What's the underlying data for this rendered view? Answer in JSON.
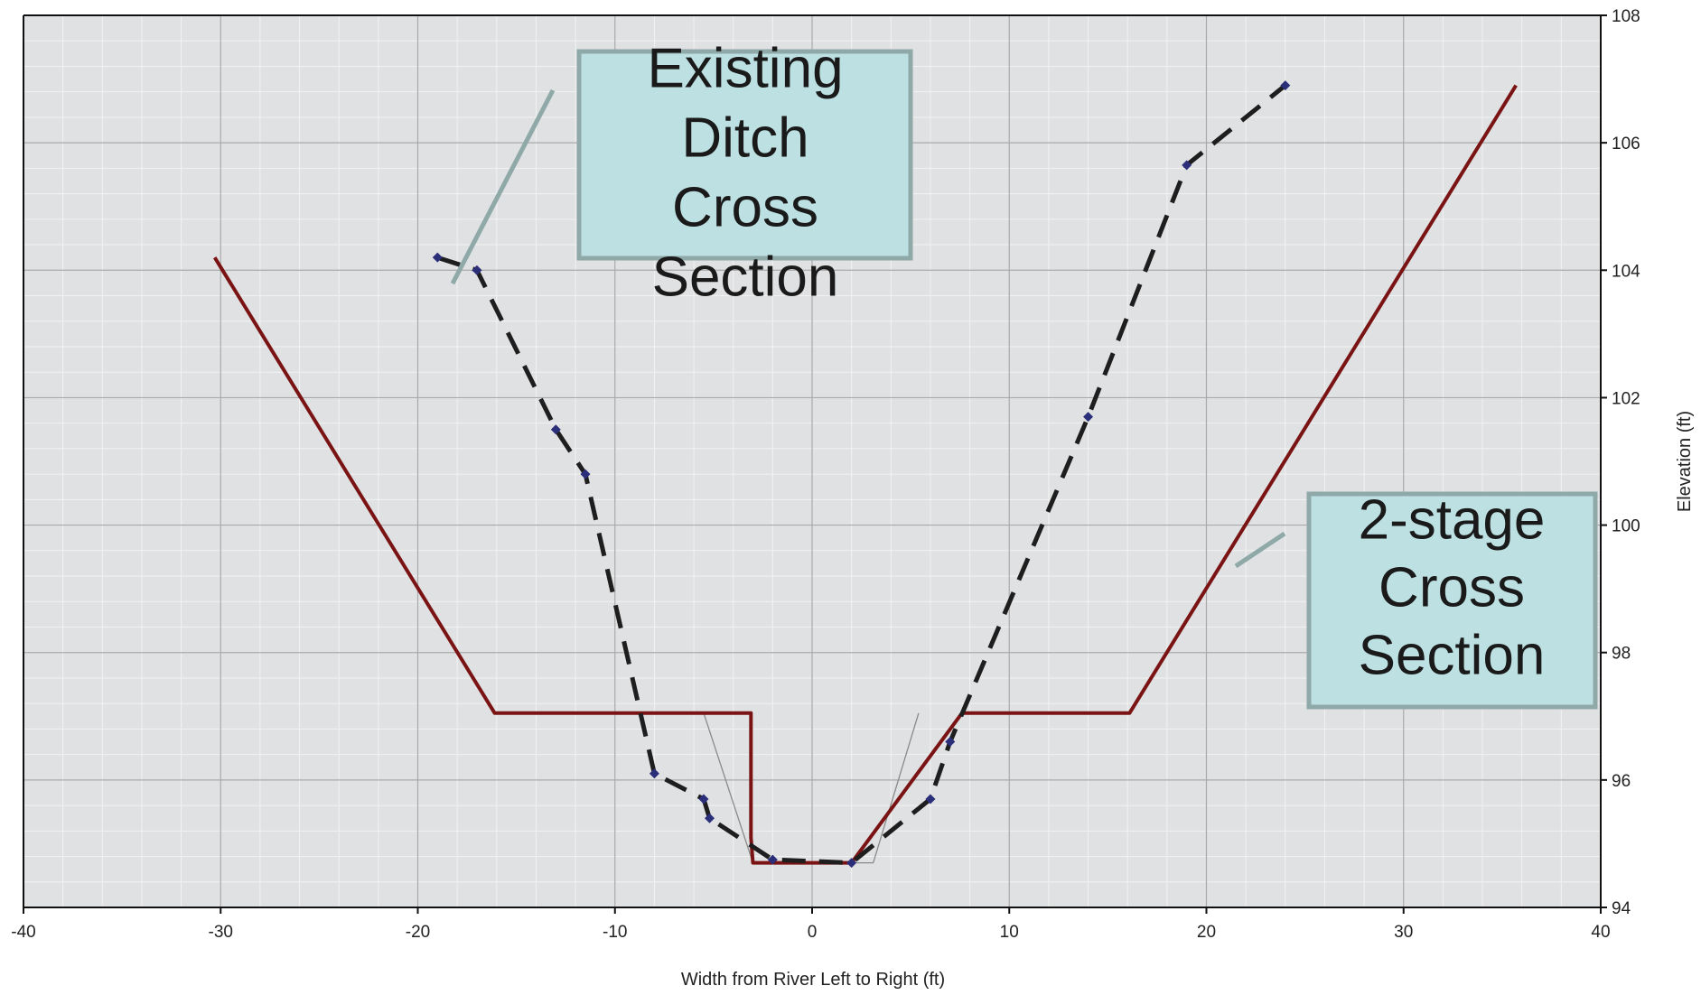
{
  "chart_data": {
    "type": "line",
    "xlabel": "Width from River Left to Right (ft)",
    "ylabel": "Elevation (ft)",
    "xlim": [
      -40,
      40
    ],
    "ylim": [
      94,
      108
    ],
    "x_ticks": [
      -40,
      -30,
      -20,
      -10,
      0,
      10,
      20,
      30,
      40
    ],
    "y_ticks": [
      94,
      96,
      98,
      100,
      102,
      104,
      106,
      108
    ],
    "grid": true,
    "y_axis_side": "right",
    "series": [
      {
        "style": "dashed-with-markers",
        "color": "#1e1e1e",
        "marker_color": "#2b2f7a",
        "points": [
          [
            -19,
            104.2
          ],
          [
            -17,
            104.0
          ],
          [
            -13,
            101.5
          ],
          [
            -11.5,
            100.8
          ],
          [
            -8,
            96.1
          ],
          [
            -5.5,
            95.7
          ],
          [
            -5.2,
            95.4
          ],
          [
            -2,
            94.75
          ],
          [
            2,
            94.7
          ],
          [
            6,
            95.7
          ],
          [
            7,
            96.6
          ],
          [
            14,
            101.7
          ],
          [
            19,
            105.65
          ],
          [
            24,
            106.9
          ]
        ]
      },
      {
        "style": "solid",
        "color": "#7a1414",
        "points": [
          [
            -30.3,
            104.2
          ],
          [
            -16.1,
            97.05
          ],
          [
            -3.1,
            97.05
          ],
          [
            -3.1,
            95.1
          ],
          [
            -3.0,
            94.7
          ],
          [
            2.0,
            94.7
          ],
          [
            7.6,
            97.05
          ],
          [
            16.1,
            97.05
          ],
          [
            35.7,
            106.9
          ]
        ]
      },
      {
        "style": "thin",
        "color": "#8a8a8a",
        "points": [
          [
            -5.5,
            97.05
          ],
          [
            -3.0,
            94.7
          ],
          [
            3.1,
            94.7
          ],
          [
            5.4,
            97.05
          ]
        ]
      }
    ],
    "annotations": [
      {
        "lines": [
          "Existing",
          "Ditch",
          "Cross",
          "Section"
        ],
        "box_fill": "#bde0e3",
        "box_stroke": "#8fa8a8"
      },
      {
        "lines": [
          "2-stage",
          "Cross",
          "Section"
        ],
        "box_fill": "#bde0e3",
        "box_stroke": "#8fa8a8"
      }
    ]
  }
}
